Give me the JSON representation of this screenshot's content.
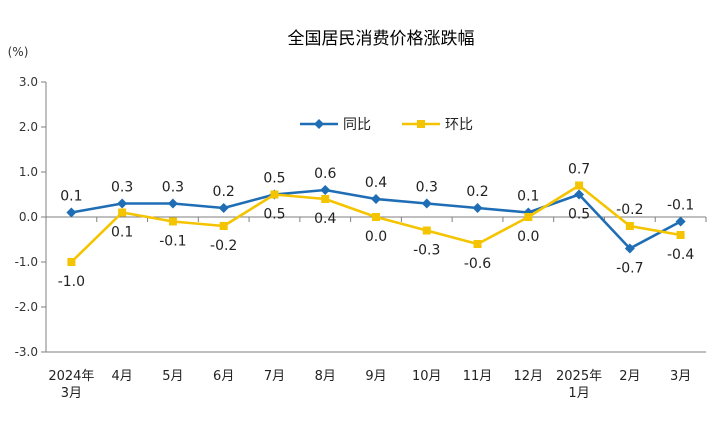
{
  "chart_data": {
    "type": "line",
    "title": "全国居民消费价格涨跌幅",
    "ylabel": "(%)",
    "ylim": [
      -3.0,
      3.0
    ],
    "yticks": [
      "3.0",
      "2.0",
      "1.0",
      "0.0",
      "-1.0",
      "-2.0",
      "-3.0"
    ],
    "categories": [
      [
        "2024年",
        "3月"
      ],
      [
        "4月"
      ],
      [
        "5月"
      ],
      [
        "6月"
      ],
      [
        "7月"
      ],
      [
        "8月"
      ],
      [
        "9月"
      ],
      [
        "10月"
      ],
      [
        "11月"
      ],
      [
        "12月"
      ],
      [
        "2025年",
        "1月"
      ],
      [
        "2月"
      ],
      [
        "3月"
      ]
    ],
    "legend_position": "top-center",
    "grid": false,
    "series": [
      {
        "name": "同比",
        "color": "#1f6eb5",
        "marker": "diamond",
        "values": [
          0.1,
          0.3,
          0.3,
          0.2,
          0.5,
          0.6,
          0.4,
          0.3,
          0.2,
          0.1,
          0.5,
          -0.7,
          -0.1
        ],
        "labels": [
          "0.1",
          "0.3",
          "0.3",
          "0.2",
          "0.5",
          "0.6",
          "0.4",
          "0.3",
          "0.2",
          "0.1",
          "0.5",
          "-0.7",
          "-0.1"
        ]
      },
      {
        "name": "环比",
        "color": "#f5c400",
        "marker": "square",
        "values": [
          -1.0,
          0.1,
          -0.1,
          -0.2,
          0.5,
          0.4,
          0.0,
          -0.3,
          -0.6,
          0.0,
          0.7,
          -0.2,
          -0.4
        ],
        "labels": [
          "-1.0",
          "0.1",
          "-0.1",
          "-0.2",
          "0.5",
          "0.4",
          "0.0",
          "-0.3",
          "-0.6",
          "0.0",
          "0.7",
          "-0.2",
          "-0.4"
        ]
      }
    ]
  }
}
